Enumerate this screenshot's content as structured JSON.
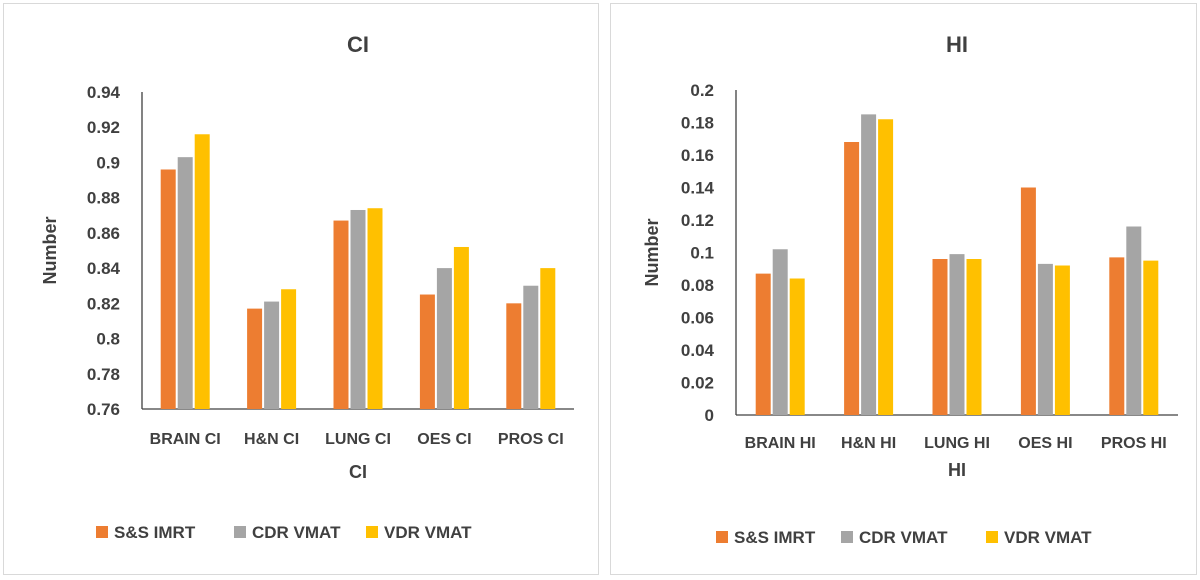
{
  "colors": {
    "S&S IMRT": "#ED7D31",
    "CDR VMAT": "#A5A5A5",
    "VDR VMAT": "#FFC000",
    "axis": "#404040",
    "text": "#404040"
  },
  "chart_data": [
    {
      "type": "bar",
      "title": "CI",
      "xlabel": "CI",
      "ylabel": "Number",
      "categories": [
        "BRAIN CI",
        "H&N CI",
        "LUNG CI",
        "OES CI",
        "PROS CI"
      ],
      "ylim": [
        0.76,
        0.94
      ],
      "yticks": [
        "0.76",
        "0.78",
        "0.8",
        "0.82",
        "0.84",
        "0.86",
        "0.88",
        "0.9",
        "0.92",
        "0.94"
      ],
      "series": [
        {
          "name": "S&S IMRT",
          "values": [
            0.896,
            0.817,
            0.867,
            0.825,
            0.82
          ]
        },
        {
          "name": "CDR VMAT",
          "values": [
            0.903,
            0.821,
            0.873,
            0.84,
            0.83
          ]
        },
        {
          "name": "VDR VMAT",
          "values": [
            0.916,
            0.828,
            0.874,
            0.852,
            0.84
          ]
        }
      ],
      "grid": false,
      "legend": "bottom"
    },
    {
      "type": "bar",
      "title": "HI",
      "xlabel": "HI",
      "ylabel": "Number",
      "categories": [
        "BRAIN HI",
        "H&N HI",
        "LUNG HI",
        "OES HI",
        "PROS HI"
      ],
      "ylim": [
        0,
        0.2
      ],
      "yticks": [
        "0",
        "0.02",
        "0.04",
        "0.06",
        "0.08",
        "0.1",
        "0.12",
        "0.14",
        "0.16",
        "0.18",
        "0.2"
      ],
      "series": [
        {
          "name": "S&S IMRT",
          "values": [
            0.087,
            0.168,
            0.096,
            0.14,
            0.097
          ]
        },
        {
          "name": "CDR VMAT",
          "values": [
            0.102,
            0.185,
            0.099,
            0.093,
            0.116
          ]
        },
        {
          "name": "VDR VMAT",
          "values": [
            0.084,
            0.182,
            0.096,
            0.092,
            0.095
          ]
        }
      ],
      "grid": false,
      "legend": "bottom"
    }
  ]
}
